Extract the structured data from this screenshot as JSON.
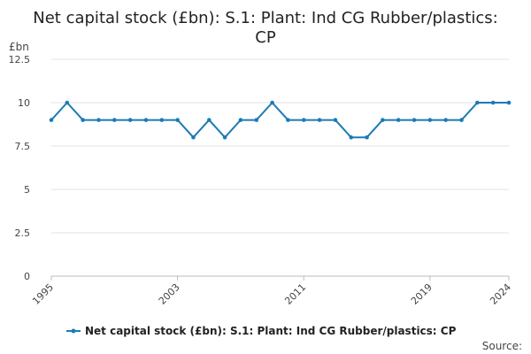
{
  "chart_data": {
    "type": "line",
    "title_lines": [
      "Net capital stock (£bn): S.1: Plant: Ind CG Rubber/plastics:",
      "CP"
    ],
    "y_unit": "£bn",
    "ylim": [
      0,
      12.5
    ],
    "y_ticks": [
      "0",
      "2.5",
      "5",
      "7.5",
      "10",
      "12.5"
    ],
    "x_ticks": [
      "1995",
      "2003",
      "2011",
      "2019",
      "2024"
    ],
    "x": [
      1995,
      1996,
      1997,
      1998,
      1999,
      2000,
      2001,
      2002,
      2003,
      2004,
      2005,
      2006,
      2007,
      2008,
      2009,
      2010,
      2011,
      2012,
      2013,
      2014,
      2015,
      2016,
      2017,
      2018,
      2019,
      2020,
      2021,
      2022,
      2023,
      2024
    ],
    "series": [
      {
        "name": "Net capital stock (£bn): S.1: Plant: Ind CG Rubber/plastics: CP",
        "color": "#1c7bb4",
        "values": [
          9,
          10,
          9,
          9,
          9,
          9,
          9,
          9,
          9,
          8,
          9,
          8,
          9,
          9,
          10,
          9,
          9,
          9,
          9,
          8,
          8,
          9,
          9,
          9,
          9,
          9,
          9,
          10,
          10,
          10
        ]
      }
    ],
    "grid": true,
    "legend_position": "bottom",
    "source_label": "Source:"
  }
}
